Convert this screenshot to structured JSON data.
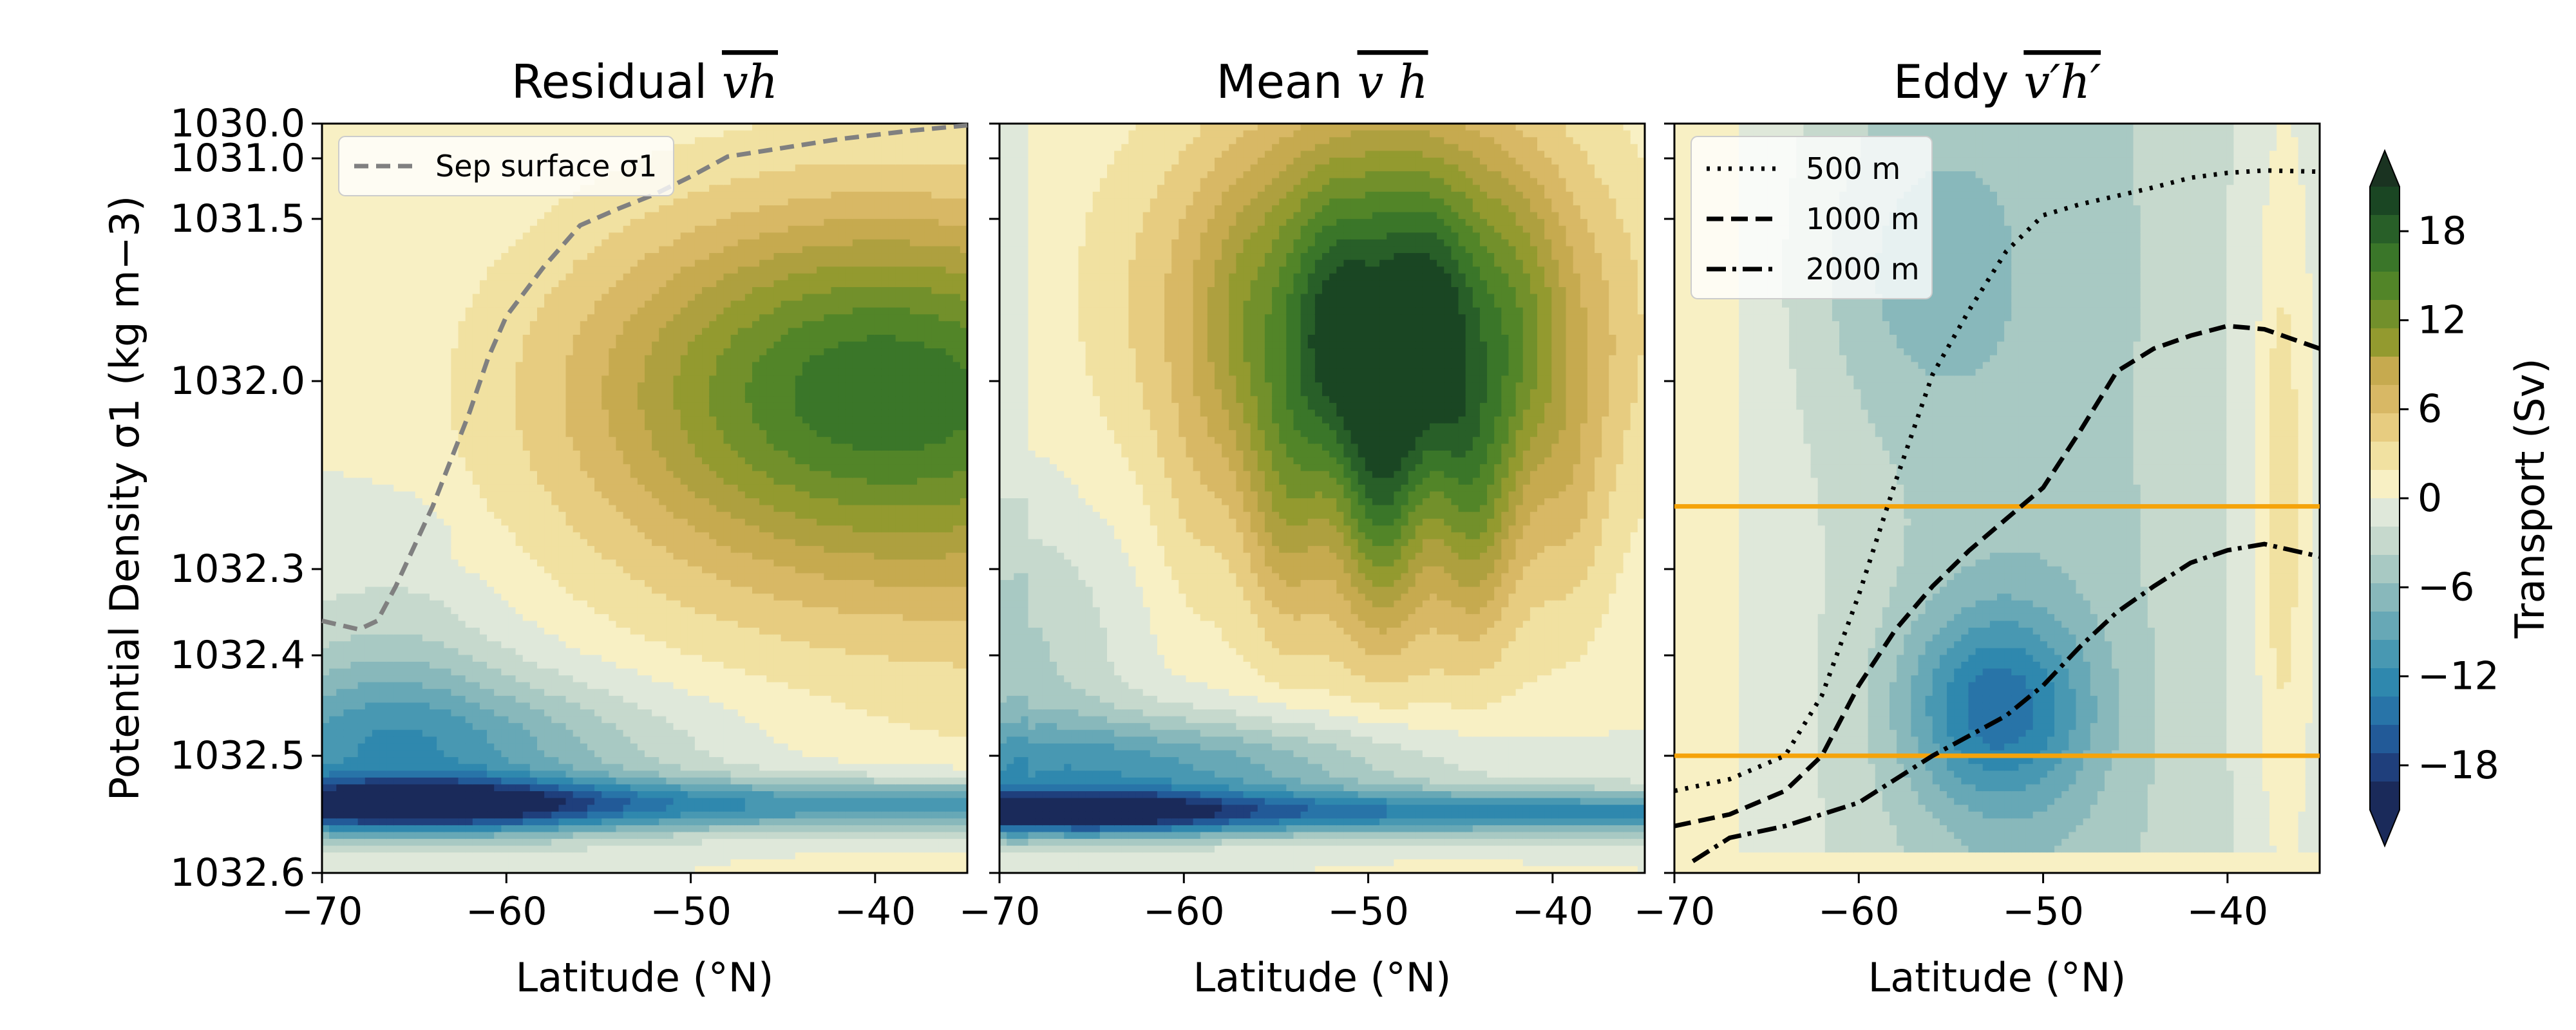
{
  "chart_data": [
    {
      "type": "contour",
      "title": "Residual",
      "title_math": "vh",
      "xlabel": "Latitude (°N)",
      "ylabel": "Potential Density σ1 (kg m−3)",
      "xlim": [
        -70,
        -35
      ],
      "ylim": [
        1030.0,
        1032.6
      ],
      "x_ticks": [
        "−70",
        "−60",
        "−50",
        "−40"
      ],
      "y_ticks": [
        "1030.0",
        "1031.0",
        "1031.5",
        "1032.0",
        "1032.3",
        "1032.4",
        "1032.5",
        "1032.6"
      ],
      "legend": [
        {
          "label": "Sep surface σ1",
          "style": "dashed",
          "color": "#808080"
        }
      ],
      "legend_placement": "top-left",
      "sep_surface": {
        "x": [
          -70,
          -68,
          -67,
          -66,
          -64,
          -62,
          -61,
          -60,
          -58,
          -56,
          -54,
          -52,
          -50,
          -48,
          -45,
          -42,
          -38,
          -35
        ],
        "y": [
          1032.36,
          1032.37,
          1032.36,
          1032.32,
          1032.2,
          1032.05,
          1031.93,
          1031.8,
          1031.65,
          1031.52,
          1031.42,
          1031.3,
          1031.15,
          1030.95,
          1030.7,
          1030.45,
          1030.2,
          1030.05
        ]
      }
    },
    {
      "type": "contour",
      "title": "Mean",
      "title_math": "v h",
      "xlabel": "Latitude (°N)",
      "xlim": [
        -70,
        -35
      ],
      "ylim": [
        1030.0,
        1032.6
      ],
      "x_ticks": [
        "−70",
        "−60",
        "−50",
        "−40"
      ]
    },
    {
      "type": "contour",
      "title": "Eddy",
      "title_math": "v′h′",
      "xlabel": "Latitude (°N)",
      "xlim": [
        -70,
        -35
      ],
      "ylim": [
        1030.0,
        1032.6
      ],
      "x_ticks": [
        "−70",
        "−60",
        "−50",
        "−40"
      ],
      "legend": [
        {
          "label": "500 m",
          "style": "dotted"
        },
        {
          "label": "1000 m",
          "style": "dashed"
        },
        {
          "label": "2000 m",
          "style": "dashdot"
        }
      ],
      "legend_placement": "top-left",
      "reference_lines": [
        1032.2,
        1032.5
      ],
      "reference_color": "#f5a30a",
      "depth_500": {
        "x": [
          -70,
          -67,
          -64,
          -62,
          -60,
          -58,
          -56,
          -54,
          -52,
          -50,
          -48,
          -46,
          -44,
          -42,
          -40,
          -38,
          -35
        ],
        "y": [
          1032.53,
          1032.52,
          1032.5,
          1032.44,
          1032.33,
          1032.16,
          1031.98,
          1031.78,
          1031.6,
          1031.47,
          1031.38,
          1031.31,
          1031.24,
          1031.16,
          1031.12,
          1031.1,
          1031.11
        ]
      },
      "depth_1000": {
        "x": [
          -70,
          -67,
          -64,
          -62,
          -60,
          -58,
          -56,
          -54,
          -52,
          -50,
          -48,
          -46,
          -44,
          -42,
          -40,
          -38,
          -35
        ],
        "y": [
          1032.56,
          1032.55,
          1032.53,
          1032.5,
          1032.43,
          1032.37,
          1032.32,
          1032.27,
          1032.22,
          1032.17,
          1032.08,
          1031.97,
          1031.9,
          1031.86,
          1031.83,
          1031.84,
          1031.9
        ]
      },
      "depth_2000": {
        "x": [
          -69,
          -67,
          -64,
          -62,
          -60,
          -58,
          -56,
          -54,
          -52,
          -50,
          -48,
          -46,
          -44,
          -42,
          -40,
          -38,
          -35
        ],
        "y": [
          1032.59,
          1032.57,
          1032.56,
          1032.55,
          1032.54,
          1032.52,
          1032.5,
          1032.48,
          1032.46,
          1032.43,
          1032.39,
          1032.35,
          1032.32,
          1032.29,
          1032.27,
          1032.26,
          1032.28
        ]
      }
    }
  ],
  "colorbar": {
    "label": "Transport (Sv)",
    "ticks": [
      "18",
      "12",
      "6",
      "0",
      "−6",
      "−12",
      "−18"
    ],
    "range": [
      -21,
      21
    ],
    "extend": "both",
    "colors_neg": [
      "#1a2a5a",
      "#1f3f7c",
      "#225a98",
      "#2874a8",
      "#2f88ae",
      "#4898b2",
      "#67a8b6",
      "#88b8bb",
      "#a8c9c3",
      "#c6d9cd",
      "#dfe8da"
    ],
    "colors_pos": [
      "#f8f0c4",
      "#f1e1a1",
      "#e7cc80",
      "#d8b865",
      "#c6aa4f",
      "#aea03f",
      "#939a2f",
      "#72902b",
      "#528528",
      "#3a7629",
      "#285f28",
      "#1a4623"
    ]
  }
}
